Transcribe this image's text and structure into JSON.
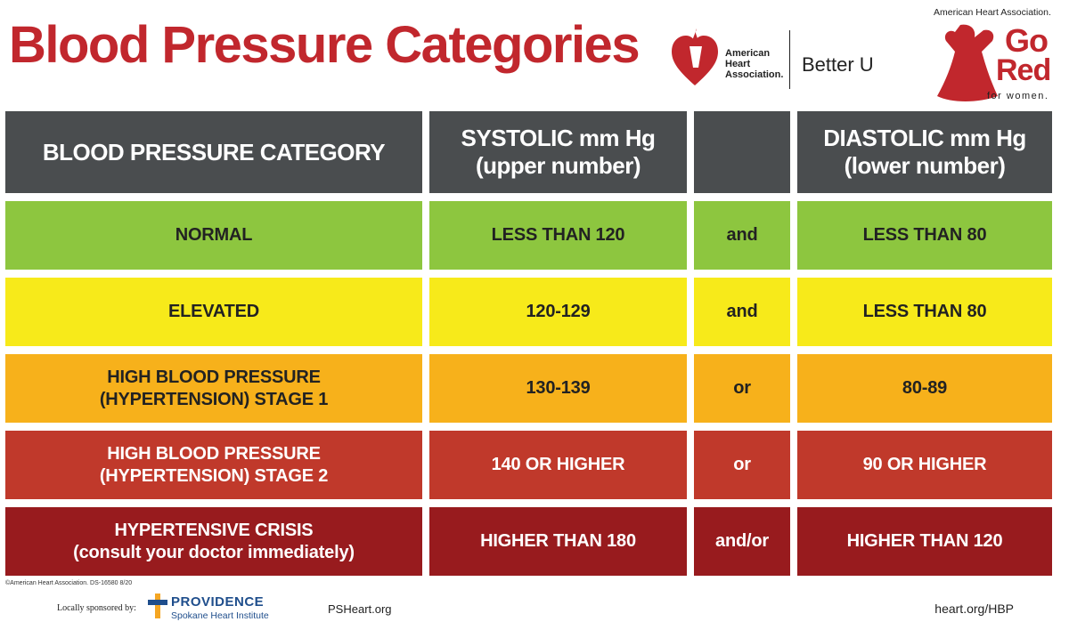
{
  "title": "Blood Pressure Categories",
  "aha": {
    "name": "American\nHeart\nAssociation.",
    "partner": "Better U"
  },
  "gored": {
    "top": "American Heart Association.",
    "go": "Go",
    "red": "Red",
    "sub": "for women."
  },
  "table": {
    "headers": {
      "category": "BLOOD PRESSURE CATEGORY",
      "systolic": "SYSTOLIC mm Hg\n(upper number)",
      "join": "",
      "diastolic": "DIASTOLIC mm Hg\n(lower number)"
    },
    "rows": [
      {
        "category": "NORMAL",
        "systolic": "LESS THAN 120",
        "join": "and",
        "diastolic": "LESS THAN 80"
      },
      {
        "category": "ELEVATED",
        "systolic": "120-129",
        "join": "and",
        "diastolic": "LESS THAN 80"
      },
      {
        "category": "HIGH BLOOD PRESSURE\n(HYPERTENSION) STAGE 1",
        "systolic": "130-139",
        "join": "or",
        "diastolic": "80-89"
      },
      {
        "category": "HIGH BLOOD PRESSURE\n(HYPERTENSION) STAGE 2",
        "systolic": "140 OR HIGHER",
        "join": "or",
        "diastolic": "90 OR HIGHER"
      },
      {
        "category": "HYPERTENSIVE CRISIS\n(consult your doctor immediately)",
        "systolic": "HIGHER THAN 180",
        "join": "and/or",
        "diastolic": "HIGHER THAN 120"
      }
    ]
  },
  "footer": {
    "copyright": "©American Heart Association. DS-16580 8/20",
    "sponsored": "Locally sponsored by:",
    "sponsor_name": "PROVIDENCE",
    "sponsor_sub": "Spokane Heart Institute",
    "sponsor_url": "PSHeart.org",
    "aha_url": "heart.org/HBP"
  },
  "colors": {
    "title": "#c1272d",
    "header": "#4a4d4f",
    "normal": "#8dc63f",
    "elevated": "#f7ea1a",
    "stage1": "#f7b11b",
    "stage2": "#c0392b",
    "crisis": "#981b1e"
  }
}
